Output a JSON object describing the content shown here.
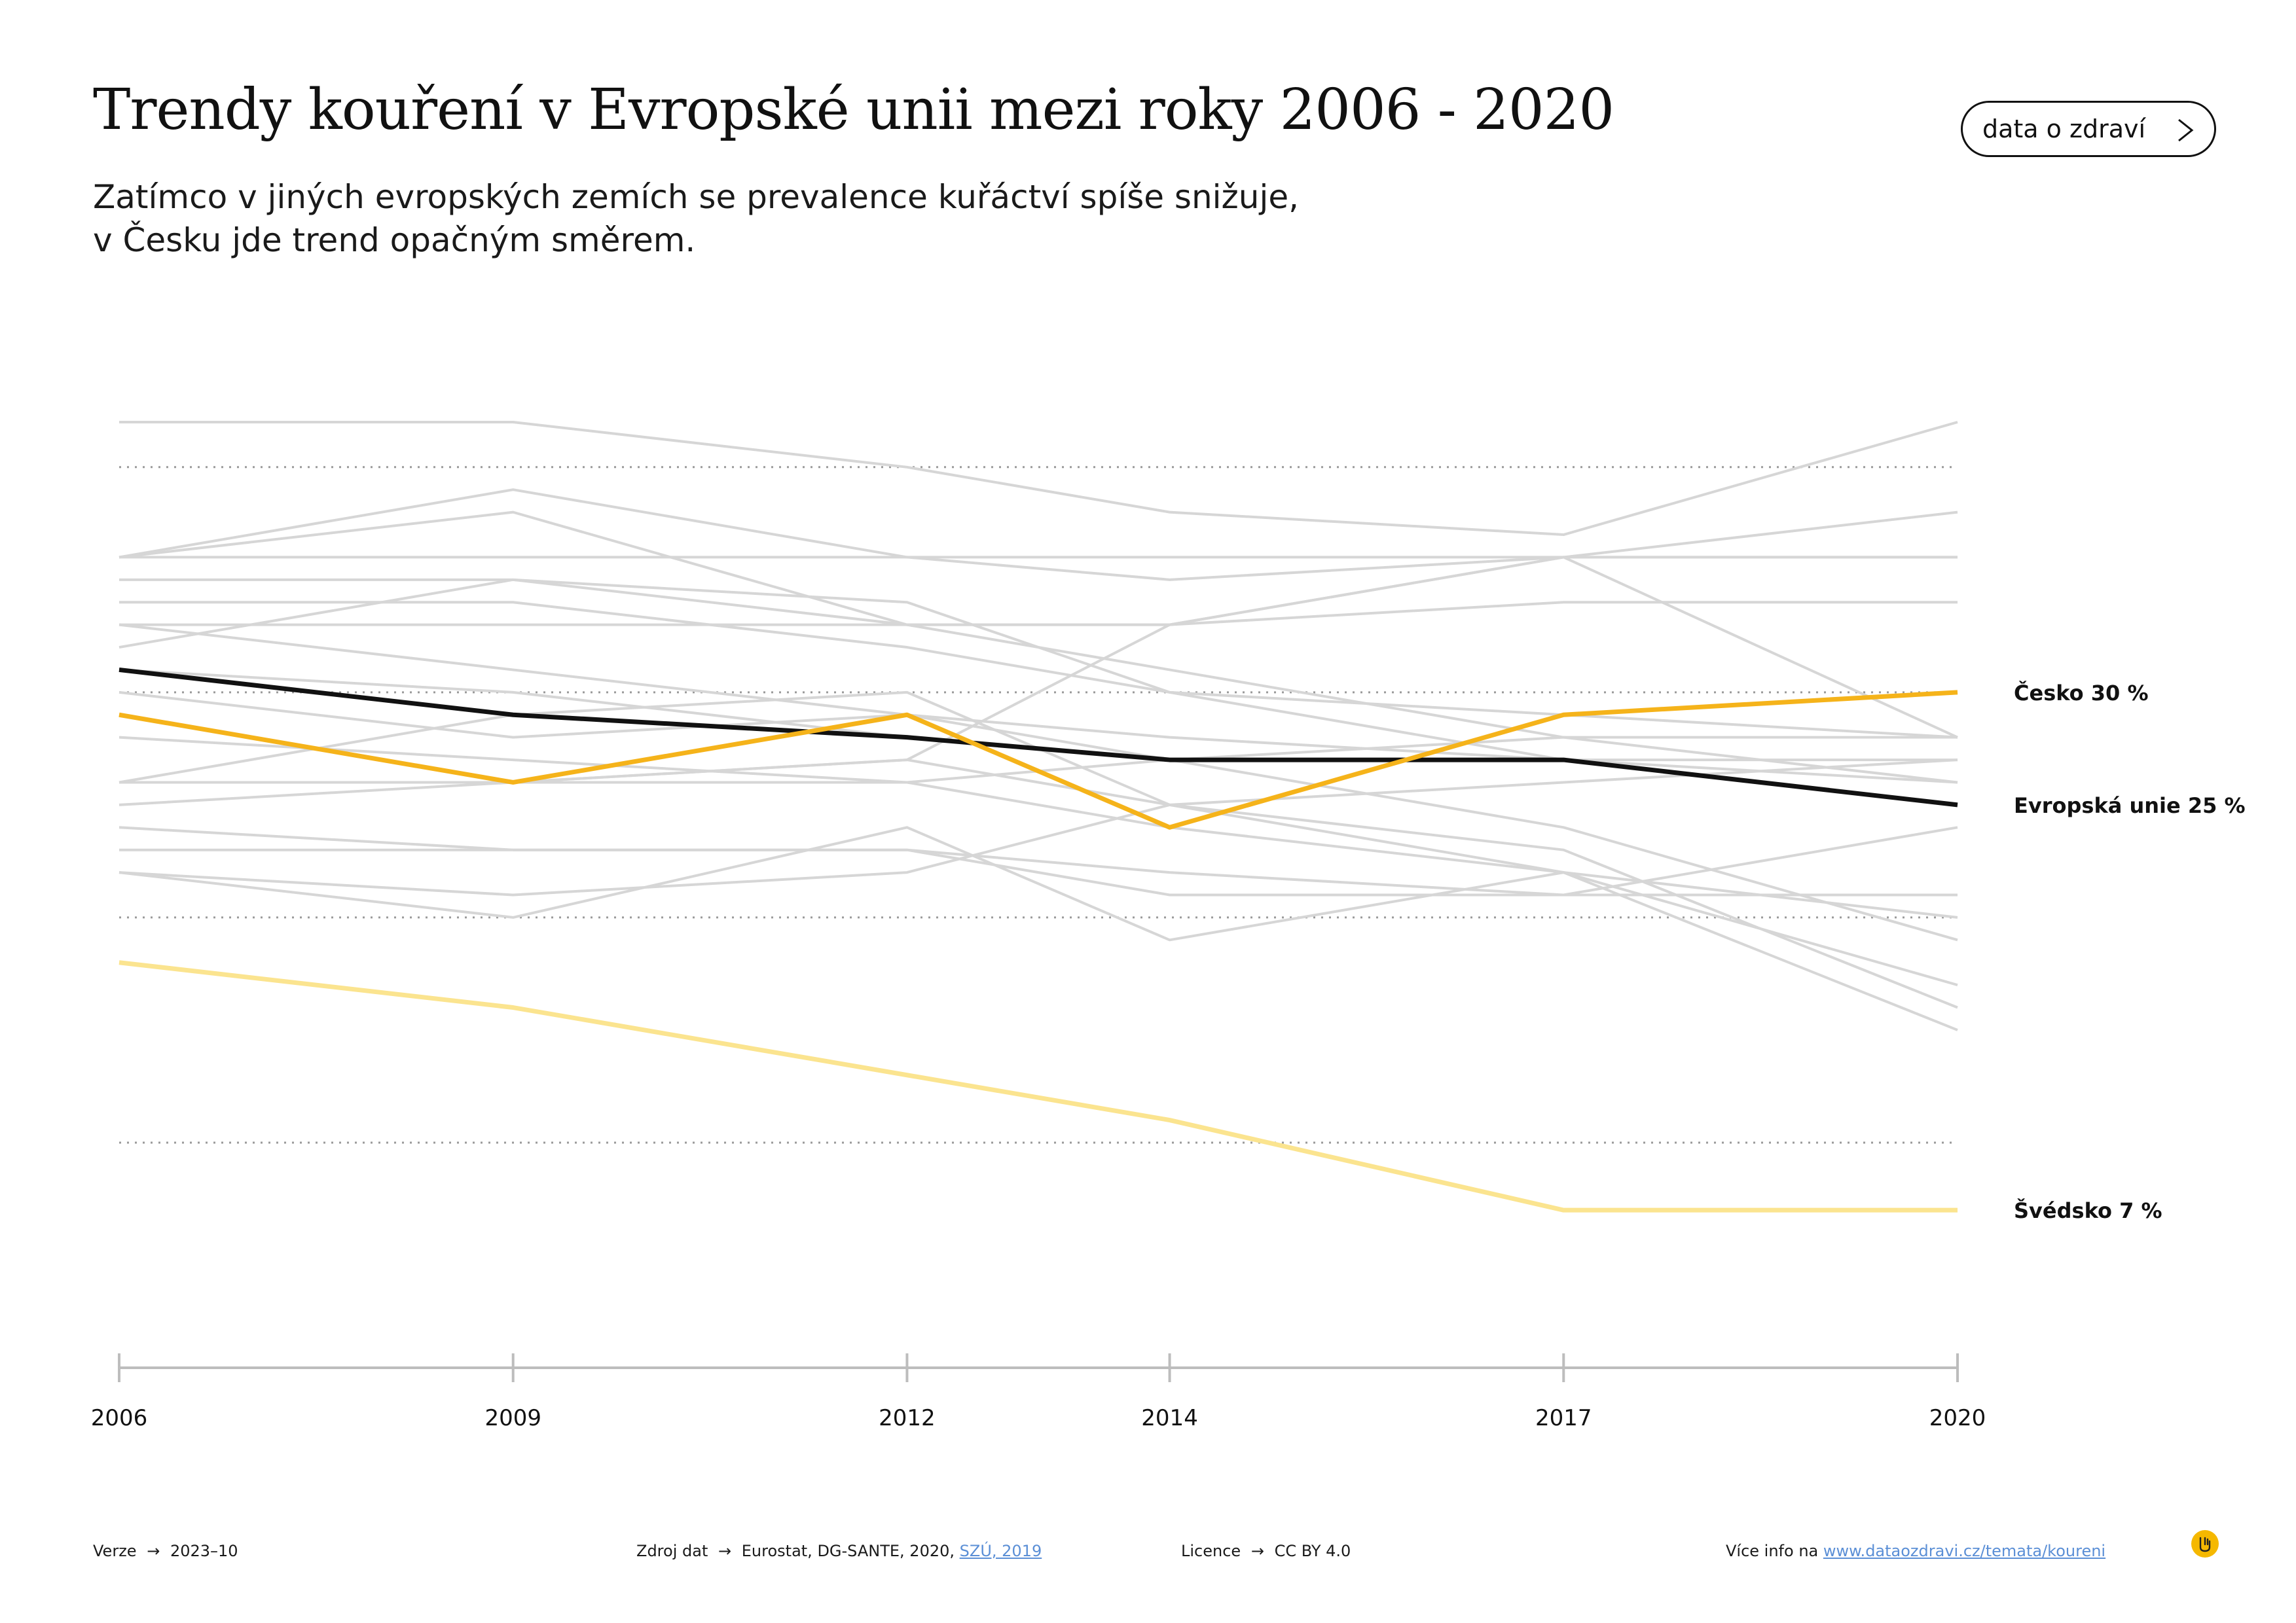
{
  "header": {
    "title": "Trendy kouření v Evropské unii mezi roky 2006 - 2020",
    "subtitle_line1": "Zatímco v jiných evropských zemích se prevalence kuřáctví spíše snižuje,",
    "subtitle_line2": "v Česku jde trend opačným směrem.",
    "button_label": "data o zdraví"
  },
  "chart_data": {
    "type": "line",
    "x": [
      2006,
      2009,
      2012,
      2014,
      2017,
      2020
    ],
    "x_tick_labels": [
      "2006",
      "2009",
      "2012",
      "2014",
      "2017",
      "2020"
    ],
    "ylim": [
      0,
      42
    ],
    "y_gridlines": [
      10,
      20,
      30,
      40
    ],
    "grid": "dotted horizontal",
    "highlighted_series": [
      {
        "name": "Česko",
        "label": "Česko 30 %",
        "color": "#f5b31a",
        "values": [
          29,
          26,
          29,
          24,
          29,
          30
        ]
      },
      {
        "name": "Evropská unie",
        "label": "Evropská unie 25 %",
        "color": "#111111",
        "values": [
          31,
          29,
          28,
          27,
          27,
          25
        ]
      },
      {
        "name": "Švédsko",
        "label": "Švédsko 7 %",
        "color": "#fbe48f",
        "values": [
          18,
          16,
          13,
          11,
          7,
          7
        ]
      }
    ],
    "background_series_color": "#d6d6d6",
    "background_series": [
      [
        42,
        42,
        40,
        38,
        37,
        42
      ],
      [
        36,
        39,
        36,
        35,
        36,
        36
      ],
      [
        36,
        38,
        33,
        33,
        36,
        38
      ],
      [
        36,
        36,
        36,
        36,
        36,
        36
      ],
      [
        35,
        35,
        33,
        31,
        28,
        26
      ],
      [
        34,
        34,
        32,
        30,
        29,
        28
      ],
      [
        33,
        31,
        29,
        28,
        27,
        27
      ],
      [
        33,
        33,
        33,
        33,
        34,
        34
      ],
      [
        32,
        35,
        34,
        30,
        27,
        25
      ],
      [
        31,
        30,
        28,
        27,
        24,
        19
      ],
      [
        30,
        28,
        29,
        27,
        27,
        26
      ],
      [
        29,
        26,
        27,
        25,
        22,
        20
      ],
      [
        28,
        27,
        26,
        24,
        22,
        17
      ],
      [
        26,
        26,
        26,
        27,
        28,
        28
      ],
      [
        26,
        29,
        30,
        25,
        23,
        16
      ],
      [
        25,
        26,
        27,
        33,
        36,
        28
      ],
      [
        24,
        23,
        23,
        22,
        21,
        24
      ],
      [
        23,
        23,
        23,
        21,
        21,
        21
      ],
      [
        22,
        21,
        22,
        25,
        26,
        27
      ],
      [
        22,
        20,
        24,
        19,
        22,
        15
      ]
    ]
  },
  "footer": {
    "version_label": "Verze",
    "version_value": "2023–10",
    "source_label": "Zdroj dat",
    "source_value": "Eurostat, DG-SANTE, 2020,",
    "source_link": "SZÚ, 2019",
    "license_label": "Licence",
    "license_value": "CC BY 4.0",
    "more_info_label": "Více info na",
    "more_info_link": "www.dataozdravi.cz/temata/koureni",
    "arrow": "→"
  },
  "icons": {
    "button_icon": "chevron-right-icon",
    "logo_icon": "hand-logo-icon",
    "logo_color": "#f5b800"
  }
}
